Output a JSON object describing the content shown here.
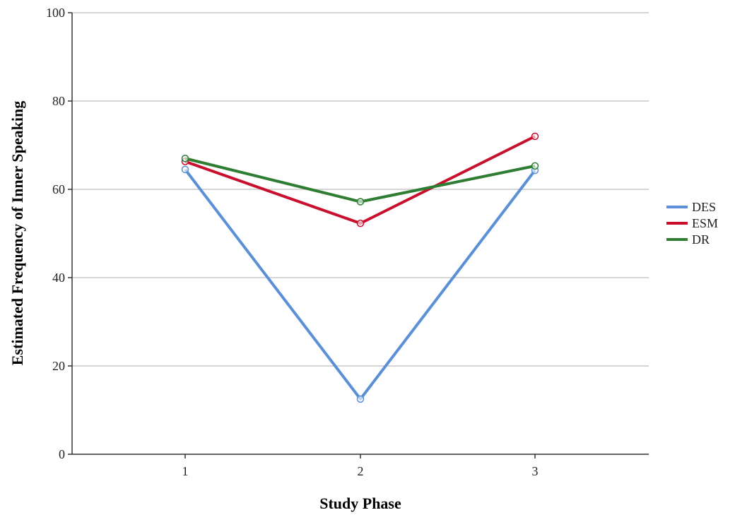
{
  "chart_data": {
    "type": "line",
    "title": "",
    "xlabel": "Study Phase",
    "ylabel": "Estimated Frequency of Inner Speaking",
    "x": [
      1,
      2,
      3
    ],
    "x_tick_labels": [
      "1",
      "2",
      "3"
    ],
    "ylim": [
      0,
      100
    ],
    "y_ticks": [
      0,
      20,
      40,
      60,
      80,
      100
    ],
    "grid": "horizontal",
    "legend_position": "right",
    "series": [
      {
        "name": "DES",
        "color": "#5b8fd6",
        "values": [
          64.5,
          12.5,
          64.3
        ]
      },
      {
        "name": "ESM",
        "color": "#c8102e",
        "values": [
          66.3,
          52.3,
          72.0
        ]
      },
      {
        "name": "DR",
        "color": "#2e7d32",
        "values": [
          67.0,
          57.2,
          65.3
        ]
      }
    ]
  }
}
